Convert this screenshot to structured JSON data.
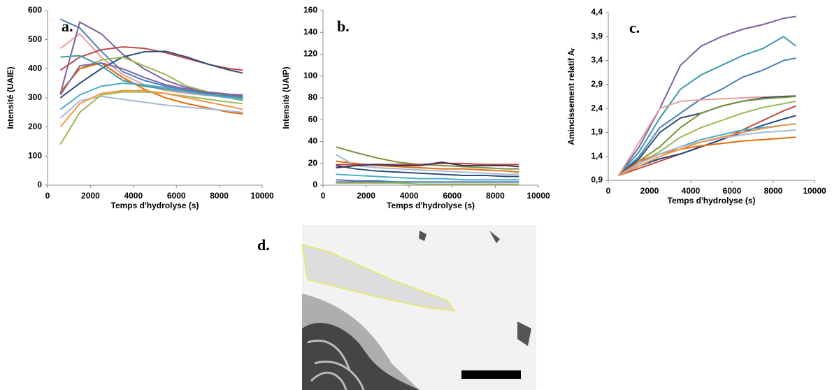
{
  "chart_data": [
    {
      "type": "line",
      "panel_label": "a.",
      "y_label": "Intensité (UAIE)",
      "x_label": "Temps d'hydrolyse (s)",
      "xlim": [
        0,
        10000
      ],
      "xticks": [
        0,
        2000,
        4000,
        6000,
        8000,
        10000
      ],
      "ylim": [
        0,
        600
      ],
      "yticks": [
        0,
        100,
        200,
        300,
        400,
        500,
        600
      ],
      "x": [
        600,
        1500,
        2500,
        3500,
        4500,
        5500,
        6500,
        7500,
        8500,
        9100
      ],
      "series": [
        {
          "color": "#4a7ebb",
          "values": [
            570,
            540,
            460,
            390,
            360,
            340,
            325,
            315,
            305,
            300
          ]
        },
        {
          "color": "#e6a09e",
          "values": [
            470,
            520,
            440,
            380,
            345,
            325,
            315,
            308,
            300,
            295
          ]
        },
        {
          "color": "#7d60a0",
          "values": [
            315,
            560,
            520,
            450,
            400,
            360,
            335,
            320,
            312,
            310
          ]
        },
        {
          "color": "#be4b48",
          "values": [
            395,
            440,
            465,
            475,
            470,
            455,
            435,
            415,
            400,
            395
          ]
        },
        {
          "color": "#2c4d75",
          "values": [
            300,
            350,
            400,
            440,
            458,
            460,
            440,
            415,
            395,
            385
          ]
        },
        {
          "color": "#98b954",
          "values": [
            320,
            400,
            430,
            440,
            410,
            380,
            340,
            320,
            300,
            290
          ]
        },
        {
          "color": "#3a9aa8",
          "values": [
            440,
            445,
            410,
            360,
            340,
            330,
            320,
            310,
            305,
            300
          ]
        },
        {
          "color": "#e46c0a",
          "values": [
            320,
            400,
            420,
            370,
            330,
            300,
            280,
            265,
            250,
            245
          ]
        },
        {
          "color": "#a5b9dc",
          "values": [
            230,
            290,
            305,
            295,
            285,
            275,
            268,
            262,
            255,
            250
          ]
        },
        {
          "color": "#9bbb59",
          "values": [
            140,
            250,
            310,
            320,
            320,
            315,
            305,
            295,
            285,
            280
          ]
        },
        {
          "color": "#4bacc6",
          "values": [
            260,
            310,
            340,
            350,
            345,
            335,
            320,
            310,
            300,
            295
          ]
        },
        {
          "color": "#f79646",
          "values": [
            200,
            280,
            315,
            325,
            325,
            315,
            300,
            285,
            270,
            260
          ]
        },
        {
          "color": "#8064a2",
          "values": [
            310,
            410,
            420,
            400,
            370,
            345,
            330,
            318,
            310,
            305
          ]
        }
      ]
    },
    {
      "type": "line",
      "panel_label": "b.",
      "y_label": "Intensité (UAIP)",
      "x_label": "Temps d'hydrolyse (s)",
      "xlim": [
        0,
        10000
      ],
      "xticks": [
        0,
        2000,
        4000,
        6000,
        8000,
        10000
      ],
      "ylim": [
        0,
        160
      ],
      "yticks": [
        0,
        20,
        40,
        60,
        80,
        100,
        120,
        140,
        160
      ],
      "x": [
        600,
        1500,
        2500,
        3500,
        4500,
        5500,
        6500,
        7500,
        8500,
        9100
      ],
      "series": [
        {
          "color": "#77933c",
          "values": [
            35,
            30,
            25,
            21,
            19,
            18,
            17,
            16,
            15,
            15
          ]
        },
        {
          "color": "#e46c0a",
          "values": [
            22,
            20,
            18,
            17,
            16,
            15,
            15,
            14,
            13,
            12
          ]
        },
        {
          "color": "#a5b9dc",
          "values": [
            28,
            18,
            16,
            15,
            14,
            13,
            12,
            11,
            10,
            10
          ]
        },
        {
          "color": "#be4b48",
          "values": [
            19,
            19,
            19,
            19,
            19,
            20,
            20,
            19,
            19,
            19
          ]
        },
        {
          "color": "#2c4d75",
          "values": [
            18,
            15,
            13,
            12,
            11,
            10,
            9,
            9,
            8,
            8
          ]
        },
        {
          "color": "#4bacc6",
          "values": [
            10,
            9,
            8,
            7,
            6,
            6,
            5,
            5,
            5,
            5
          ]
        },
        {
          "color": "#7d60a0",
          "values": [
            3,
            3,
            3,
            3,
            3,
            3,
            3,
            3,
            3,
            3
          ]
        },
        {
          "color": "#4a7ebb",
          "values": [
            5,
            4,
            4,
            3,
            3,
            3,
            3,
            3,
            3,
            3
          ]
        },
        {
          "color": "#403152",
          "values": [
            16,
            18,
            19,
            18,
            18,
            21,
            18,
            18,
            18,
            17
          ]
        },
        {
          "color": "#9bbb59",
          "values": [
            2,
            2,
            2,
            2,
            1,
            1,
            1,
            1,
            1,
            1
          ]
        }
      ]
    },
    {
      "type": "line",
      "panel_label": "c.",
      "y_label": "Amincissement relatif Aᵣ",
      "x_label": "Temps d'hydrolyse (s)",
      "xlim": [
        0,
        10000
      ],
      "xticks": [
        0,
        2000,
        4000,
        6000,
        8000,
        10000
      ],
      "ylim": [
        0.9,
        4.4
      ],
      "yticks": [
        {
          "value": 0.9,
          "label": "0,9"
        },
        {
          "value": 1.4,
          "label": "1,4"
        },
        {
          "value": 1.9,
          "label": "1,9"
        },
        {
          "value": 2.4,
          "label": "2,4"
        },
        {
          "value": 2.9,
          "label": "2,9"
        },
        {
          "value": 3.4,
          "label": "3,4"
        },
        {
          "value": 3.9,
          "label": "3,9"
        },
        {
          "value": 4.4,
          "label": "4,4"
        }
      ],
      "x": [
        500,
        1500,
        2500,
        3500,
        4500,
        5500,
        6500,
        7500,
        8500,
        9100
      ],
      "series": [
        {
          "color": "#7d60a0",
          "values": [
            1.0,
            1.6,
            2.4,
            3.3,
            3.7,
            3.9,
            4.05,
            4.15,
            4.28,
            4.32
          ]
        },
        {
          "color": "#3a9aa8",
          "values": [
            1.0,
            1.5,
            2.2,
            2.8,
            3.1,
            3.3,
            3.5,
            3.65,
            3.9,
            3.7
          ]
        },
        {
          "color": "#4a7ebb",
          "values": [
            1.0,
            1.4,
            2.0,
            2.3,
            2.6,
            2.8,
            3.05,
            3.2,
            3.4,
            3.45
          ]
        },
        {
          "color": "#e6a09e",
          "values": [
            1.0,
            1.7,
            2.4,
            2.55,
            2.58,
            2.6,
            2.62,
            2.64,
            2.65,
            2.66
          ]
        },
        {
          "color": "#2c4d75",
          "values": [
            1.0,
            1.35,
            1.9,
            2.2,
            2.3,
            2.45,
            2.55,
            2.62,
            2.65,
            2.66
          ]
        },
        {
          "color": "#77933c",
          "values": [
            1.0,
            1.3,
            1.6,
            2.0,
            2.3,
            2.45,
            2.55,
            2.6,
            2.63,
            2.65
          ]
        },
        {
          "color": "#9bbb59",
          "values": [
            1.0,
            1.25,
            1.5,
            1.8,
            2.0,
            2.15,
            2.3,
            2.42,
            2.5,
            2.55
          ]
        },
        {
          "color": "#be4b48",
          "values": [
            1.0,
            1.15,
            1.3,
            1.45,
            1.6,
            1.75,
            1.95,
            2.15,
            2.35,
            2.45
          ]
        },
        {
          "color": "#1f497d",
          "values": [
            1.0,
            1.2,
            1.35,
            1.45,
            1.6,
            1.75,
            1.9,
            2.05,
            2.18,
            2.25
          ]
        },
        {
          "color": "#4bacc6",
          "values": [
            1.0,
            1.25,
            1.45,
            1.6,
            1.75,
            1.85,
            1.95,
            2.0,
            2.05,
            2.08
          ]
        },
        {
          "color": "#e46c0a",
          "values": [
            1.0,
            1.3,
            1.45,
            1.55,
            1.62,
            1.67,
            1.72,
            1.75,
            1.78,
            1.8
          ]
        },
        {
          "color": "#a5b9dc",
          "values": [
            1.0,
            1.25,
            1.45,
            1.6,
            1.7,
            1.78,
            1.85,
            1.9,
            1.93,
            1.95
          ]
        },
        {
          "color": "#f79646",
          "values": [
            1.0,
            1.2,
            1.4,
            1.55,
            1.7,
            1.8,
            1.9,
            1.98,
            2.05,
            2.08
          ]
        }
      ]
    }
  ],
  "image_panel": {
    "label": "d."
  }
}
